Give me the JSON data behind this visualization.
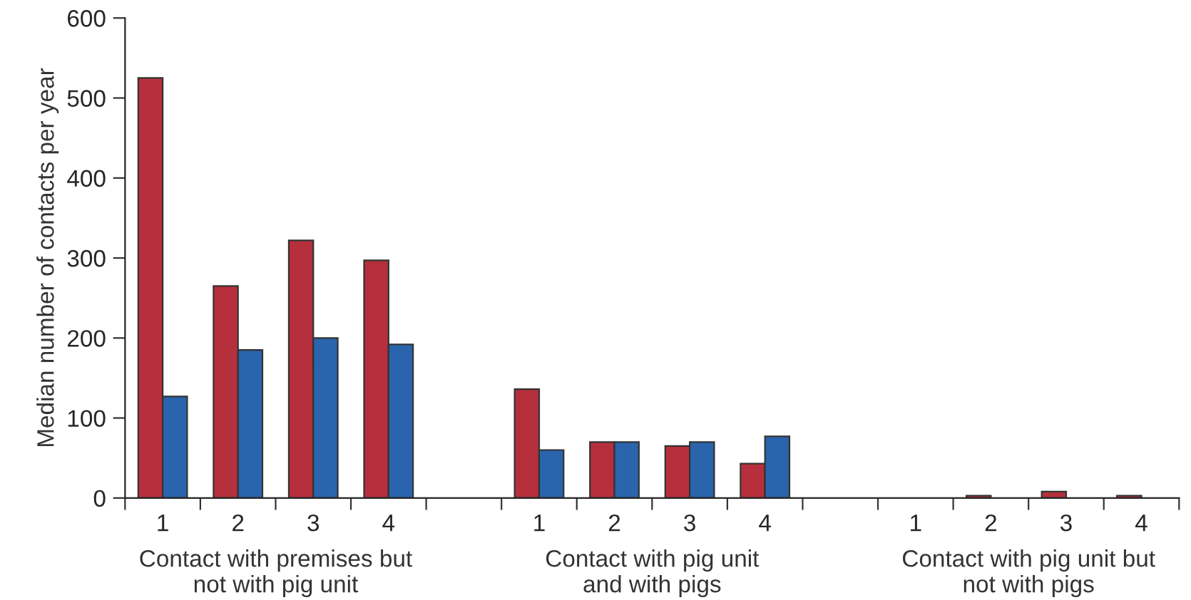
{
  "chart_data": {
    "type": "bar",
    "ylabel": "Median number of contacts per year",
    "categories": [
      "1",
      "2",
      "3",
      "4",
      null,
      "1",
      "2",
      "3",
      "4",
      null,
      "1",
      "2",
      "3",
      "4"
    ],
    "series": [
      {
        "color": "#b5303c",
        "values": [
          525,
          265,
          322,
          297,
          null,
          136,
          70,
          65,
          43,
          null,
          null,
          3,
          8,
          3
        ]
      },
      {
        "color": "#2a64ad",
        "values": [
          127,
          185,
          200,
          192,
          null,
          60,
          70,
          70,
          77,
          null,
          null,
          null,
          null,
          null
        ]
      }
    ],
    "ylim": [
      0,
      600
    ],
    "yticks": [
      0,
      100,
      200,
      300,
      400,
      500,
      600
    ],
    "annotations": [
      "Contact with premises but\nnot with pig unit",
      "Contact with pig unit\nand with pigs",
      "Contact with pig unit but\nnot with pigs"
    ],
    "grid": false,
    "legend": false
  }
}
